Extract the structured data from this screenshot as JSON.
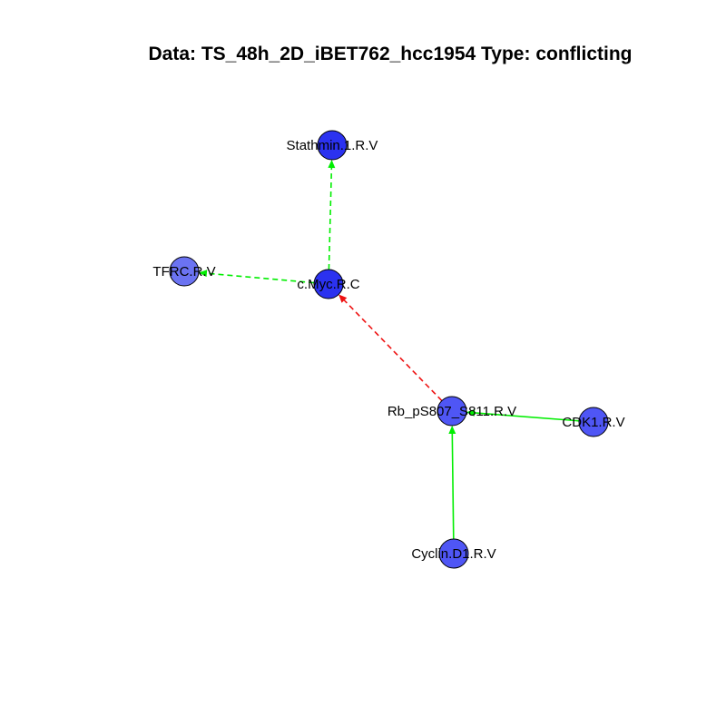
{
  "title": "Data: TS_48h_2D_iBET762_hcc1954 Type: conflicting",
  "colors": {
    "node_dark": "#2b32f0",
    "node_mid": "#4f56f5",
    "node_light": "#6b73f2",
    "edge_positive": "#00ee00",
    "edge_negative": "#ee1111",
    "node_stroke": "#000000"
  },
  "nodes": [
    {
      "id": "stathmin",
      "label": "Stathmin.1.R.V",
      "shade": "node_dark"
    },
    {
      "id": "tfrc",
      "label": "TFRC.R.V",
      "shade": "node_light"
    },
    {
      "id": "cmyc",
      "label": "c.Myc.R.C",
      "shade": "node_dark"
    },
    {
      "id": "rb",
      "label": "Rb_pS807_S811.R.V",
      "shade": "node_mid"
    },
    {
      "id": "cdk1",
      "label": "CDK1.R.V",
      "shade": "node_mid"
    },
    {
      "id": "cyclin",
      "label": "Cyclin.D1.R.V",
      "shade": "node_mid"
    }
  ],
  "edges": [
    {
      "from": "cmyc",
      "to": "stathmin",
      "style": "dashed",
      "color": "edge_positive"
    },
    {
      "from": "cmyc",
      "to": "tfrc",
      "style": "dashed",
      "color": "edge_positive"
    },
    {
      "from": "rb",
      "to": "cmyc",
      "style": "dashed",
      "color": "edge_negative"
    },
    {
      "from": "cdk1",
      "to": "rb",
      "style": "solid",
      "color": "edge_positive"
    },
    {
      "from": "cyclin",
      "to": "rb",
      "style": "solid",
      "color": "edge_positive"
    }
  ]
}
